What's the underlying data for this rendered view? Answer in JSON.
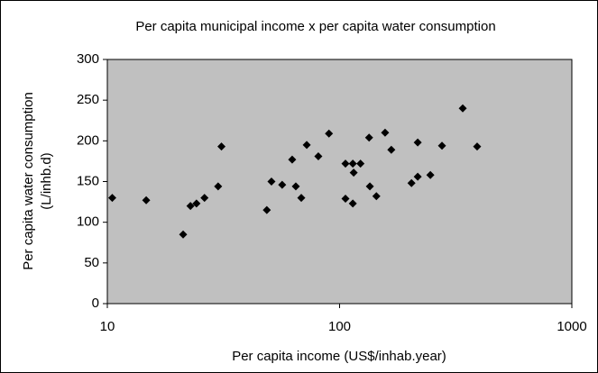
{
  "chart_data": {
    "type": "scatter",
    "title": "Per capita municipal income x per capita water consumption",
    "xlabel": "Per capita income (US$/inhab.year)",
    "ylabel": [
      "Per capita water consumption",
      "(L/inhb.d)"
    ],
    "xscale": "log",
    "xlim": [
      10,
      1000
    ],
    "xticks": [
      10,
      100,
      1000
    ],
    "ylim": [
      0,
      300
    ],
    "yticks": [
      0,
      50,
      100,
      150,
      200,
      250,
      300
    ],
    "color": "#000000",
    "background": "#c0c0c0",
    "x": [
      10.5,
      14.7,
      21.2,
      22.8,
      24.2,
      26.2,
      30,
      31,
      48.6,
      50.9,
      56.6,
      62.5,
      64.8,
      68.4,
      72.2,
      81,
      90,
      106,
      106,
      114,
      114,
      115,
      123,
      134,
      135,
      144,
      157,
      167,
      204,
      217,
      217,
      246,
      276,
      339,
      391
    ],
    "values": [
      130,
      127,
      85,
      120,
      123,
      130,
      144,
      193,
      115,
      150,
      146,
      177,
      144,
      130,
      195,
      181,
      209,
      172,
      129,
      123,
      172,
      161,
      172,
      204,
      144,
      132,
      210,
      189,
      148,
      198,
      156,
      158,
      194,
      240,
      193
    ]
  }
}
